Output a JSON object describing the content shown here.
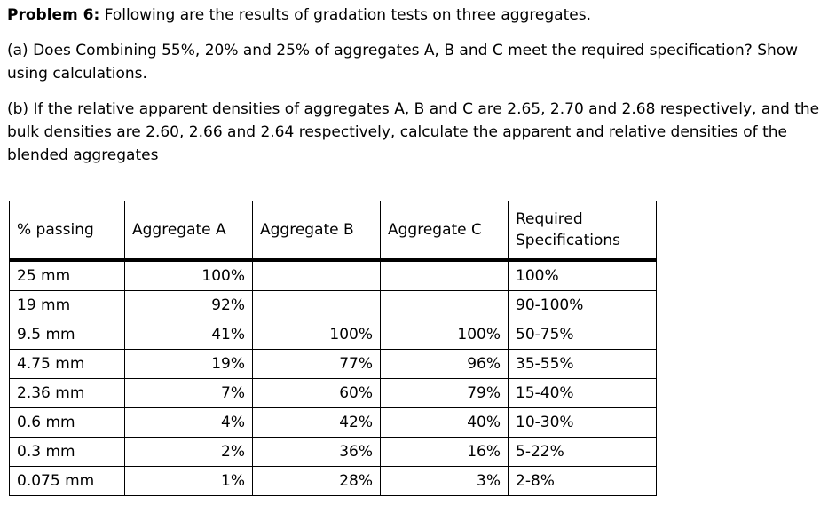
{
  "problem": {
    "title_bold": "Problem 6:",
    "title_rest": " Following are the results of gradation tests on three aggregates.",
    "part_a": "(a) Does Combining 55%, 20% and 25% of aggregates A, B and C meet the required specification? Show using calculations.",
    "part_b": "(b) If the relative apparent densities of aggregates A, B and C are 2.65, 2.70 and 2.68 respectively, and the bulk densities are 2.60, 2.66 and 2.64 respectively, calculate the apparent and relative densities of the blended aggregates"
  },
  "table": {
    "headers": [
      "% passing",
      "Aggregate A",
      "Aggregate B",
      "Aggregate C",
      "Required",
      "Specifications"
    ],
    "rows": [
      {
        "sieve": "25 mm",
        "a": "100%",
        "b": "",
        "c": "",
        "spec": "100%"
      },
      {
        "sieve": "19 mm",
        "a": "92%",
        "b": "",
        "c": "",
        "spec": "90-100%"
      },
      {
        "sieve": "9.5 mm",
        "a": "41%",
        "b": "100%",
        "c": "100%",
        "spec": "50-75%"
      },
      {
        "sieve": "4.75 mm",
        "a": "19%",
        "b": "77%",
        "c": "96%",
        "spec": "35-55%"
      },
      {
        "sieve": "2.36 mm",
        "a": "7%",
        "b": "60%",
        "c": "79%",
        "spec": "15-40%"
      },
      {
        "sieve": "0.6 mm",
        "a": "4%",
        "b": "42%",
        "c": "40%",
        "spec": "10-30%"
      },
      {
        "sieve": "0.3 mm",
        "a": "2%",
        "b": "36%",
        "c": "16%",
        "spec": "5-22%"
      },
      {
        "sieve": "0.075 mm",
        "a": "1%",
        "b": "28%",
        "c": "3%",
        "spec": "2-8%"
      }
    ]
  }
}
